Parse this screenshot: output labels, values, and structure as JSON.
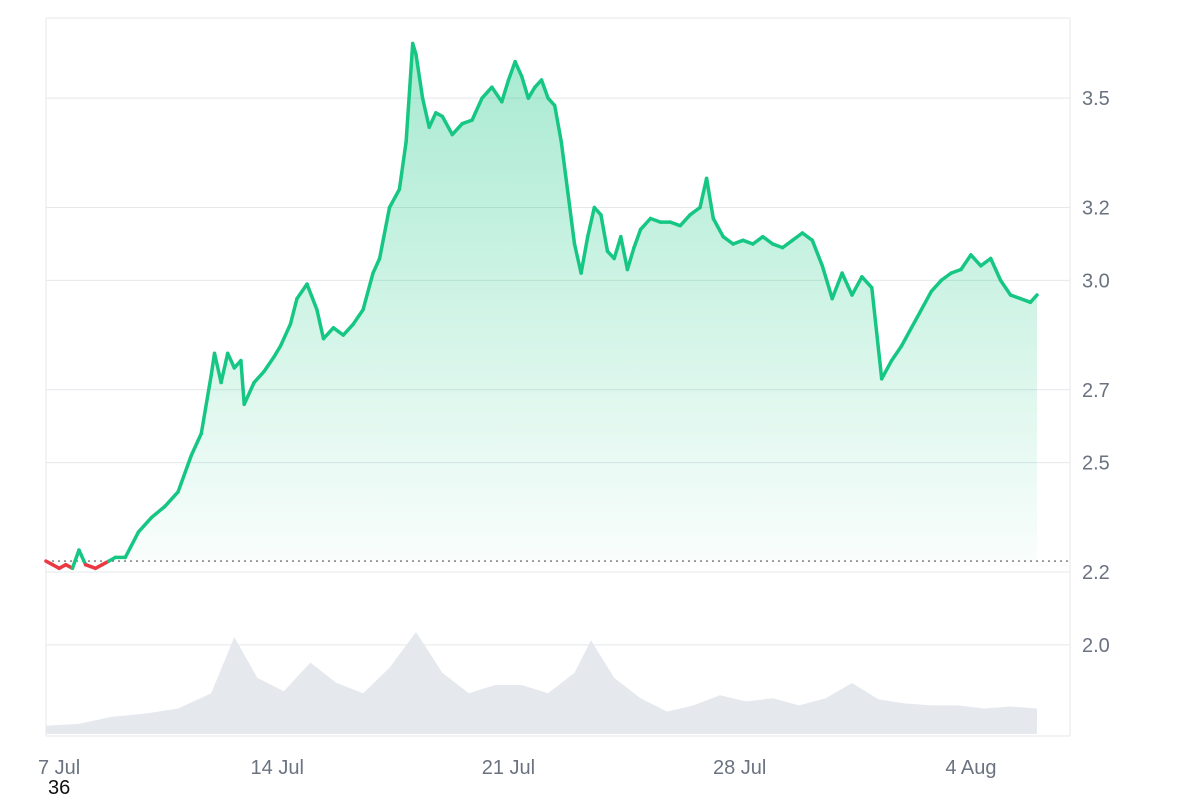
{
  "chart_data": {
    "type": "line",
    "title": "",
    "xlabel": "",
    "ylabel": "",
    "x_ticks": [
      "7 Jul",
      "14 Jul",
      "21 Jul",
      "28 Jul",
      "4 Aug"
    ],
    "y_ticks": [
      "2.0",
      "2.2",
      "2.5",
      "2.7",
      "3.0",
      "3.2",
      "3.5"
    ],
    "y_tick_values": [
      2.0,
      2.2,
      2.5,
      2.7,
      3.0,
      3.2,
      3.5
    ],
    "ylim": [
      1.75,
      3.72
    ],
    "x_range": [
      "7 Jul",
      "7 Aug"
    ],
    "reference_line": 2.23,
    "grid": true,
    "colors": {
      "up": "#16c784",
      "down": "#ea3943",
      "volume": "#e5e9ee",
      "grid": "#e5e7eb"
    },
    "series": [
      {
        "values": [
          [
            0,
            2.23
          ],
          [
            0.2,
            2.22
          ],
          [
            0.4,
            2.21
          ],
          [
            0.6,
            2.22
          ],
          [
            0.8,
            2.21
          ],
          [
            1.0,
            2.26
          ],
          [
            1.2,
            2.22
          ],
          [
            1.5,
            2.21
          ],
          [
            1.7,
            2.22
          ],
          [
            1.9,
            2.23
          ],
          [
            2.1,
            2.24
          ],
          [
            2.4,
            2.24
          ],
          [
            2.8,
            2.31
          ],
          [
            3.2,
            2.35
          ],
          [
            3.6,
            2.38
          ],
          [
            4.0,
            2.42
          ],
          [
            4.4,
            2.52
          ],
          [
            4.7,
            2.58
          ],
          [
            5.0,
            2.74
          ],
          [
            5.1,
            2.8
          ],
          [
            5.3,
            2.72
          ],
          [
            5.5,
            2.8
          ],
          [
            5.7,
            2.76
          ],
          [
            5.9,
            2.78
          ],
          [
            6.0,
            2.66
          ],
          [
            6.3,
            2.72
          ],
          [
            6.6,
            2.75
          ],
          [
            6.9,
            2.79
          ],
          [
            7.1,
            2.82
          ],
          [
            7.4,
            2.88
          ],
          [
            7.6,
            2.95
          ],
          [
            7.9,
            2.99
          ],
          [
            8.2,
            2.92
          ],
          [
            8.4,
            2.84
          ],
          [
            8.7,
            2.87
          ],
          [
            9.0,
            2.85
          ],
          [
            9.3,
            2.88
          ],
          [
            9.6,
            2.92
          ],
          [
            9.9,
            3.02
          ],
          [
            10.1,
            3.06
          ],
          [
            10.4,
            3.2
          ],
          [
            10.7,
            3.25
          ],
          [
            10.9,
            3.38
          ],
          [
            11.1,
            3.65
          ],
          [
            11.2,
            3.62
          ],
          [
            11.4,
            3.5
          ],
          [
            11.6,
            3.42
          ],
          [
            11.8,
            3.46
          ],
          [
            12.0,
            3.45
          ],
          [
            12.3,
            3.4
          ],
          [
            12.6,
            3.43
          ],
          [
            12.9,
            3.44
          ],
          [
            13.2,
            3.5
          ],
          [
            13.5,
            3.53
          ],
          [
            13.8,
            3.49
          ],
          [
            14.0,
            3.55
          ],
          [
            14.2,
            3.6
          ],
          [
            14.4,
            3.56
          ],
          [
            14.6,
            3.5
          ],
          [
            14.8,
            3.53
          ],
          [
            15.0,
            3.55
          ],
          [
            15.2,
            3.5
          ],
          [
            15.4,
            3.48
          ],
          [
            15.6,
            3.38
          ],
          [
            15.8,
            3.24
          ],
          [
            16.0,
            3.1
          ],
          [
            16.2,
            3.02
          ],
          [
            16.4,
            3.12
          ],
          [
            16.6,
            3.2
          ],
          [
            16.8,
            3.18
          ],
          [
            17.0,
            3.08
          ],
          [
            17.2,
            3.06
          ],
          [
            17.4,
            3.12
          ],
          [
            17.6,
            3.03
          ],
          [
            17.8,
            3.09
          ],
          [
            18.0,
            3.14
          ],
          [
            18.3,
            3.17
          ],
          [
            18.6,
            3.16
          ],
          [
            18.9,
            3.16
          ],
          [
            19.2,
            3.15
          ],
          [
            19.5,
            3.18
          ],
          [
            19.8,
            3.2
          ],
          [
            20.0,
            3.28
          ],
          [
            20.2,
            3.17
          ],
          [
            20.5,
            3.12
          ],
          [
            20.8,
            3.1
          ],
          [
            21.1,
            3.11
          ],
          [
            21.4,
            3.1
          ],
          [
            21.7,
            3.12
          ],
          [
            22.0,
            3.1
          ],
          [
            22.3,
            3.09
          ],
          [
            22.6,
            3.11
          ],
          [
            22.9,
            3.13
          ],
          [
            23.2,
            3.11
          ],
          [
            23.5,
            3.04
          ],
          [
            23.8,
            2.95
          ],
          [
            24.1,
            3.02
          ],
          [
            24.4,
            2.96
          ],
          [
            24.7,
            3.01
          ],
          [
            25.0,
            2.98
          ],
          [
            25.3,
            2.73
          ],
          [
            25.6,
            2.78
          ],
          [
            25.9,
            2.82
          ],
          [
            26.2,
            2.87
          ],
          [
            26.5,
            2.92
          ],
          [
            26.8,
            2.97
          ],
          [
            27.1,
            3.0
          ],
          [
            27.4,
            3.02
          ],
          [
            27.7,
            3.03
          ],
          [
            28.0,
            3.07
          ],
          [
            28.3,
            3.04
          ],
          [
            28.6,
            3.06
          ],
          [
            28.9,
            3.0
          ],
          [
            29.2,
            2.96
          ],
          [
            29.5,
            2.95
          ],
          [
            29.8,
            2.94
          ],
          [
            30.0,
            2.96
          ]
        ]
      }
    ],
    "volume_values": [
      [
        0,
        0.08
      ],
      [
        1,
        0.1
      ],
      [
        2,
        0.17
      ],
      [
        3,
        0.2
      ],
      [
        4,
        0.25
      ],
      [
        5,
        0.4
      ],
      [
        5.7,
        0.95
      ],
      [
        6.4,
        0.55
      ],
      [
        7.2,
        0.42
      ],
      [
        8.0,
        0.7
      ],
      [
        8.8,
        0.5
      ],
      [
        9.6,
        0.4
      ],
      [
        10.4,
        0.65
      ],
      [
        11.2,
        1.0
      ],
      [
        12.0,
        0.6
      ],
      [
        12.8,
        0.4
      ],
      [
        13.6,
        0.48
      ],
      [
        14.4,
        0.48
      ],
      [
        15.2,
        0.4
      ],
      [
        16.0,
        0.6
      ],
      [
        16.5,
        0.92
      ],
      [
        17.2,
        0.55
      ],
      [
        18.0,
        0.35
      ],
      [
        18.8,
        0.22
      ],
      [
        19.6,
        0.28
      ],
      [
        20.4,
        0.38
      ],
      [
        21.2,
        0.32
      ],
      [
        22.0,
        0.35
      ],
      [
        22.8,
        0.28
      ],
      [
        23.6,
        0.35
      ],
      [
        24.4,
        0.5
      ],
      [
        25.2,
        0.34
      ],
      [
        26.0,
        0.3
      ],
      [
        26.8,
        0.28
      ],
      [
        27.6,
        0.28
      ],
      [
        28.4,
        0.25
      ],
      [
        29.2,
        0.27
      ],
      [
        30.0,
        0.25
      ]
    ]
  },
  "footer": {
    "value": "36"
  }
}
